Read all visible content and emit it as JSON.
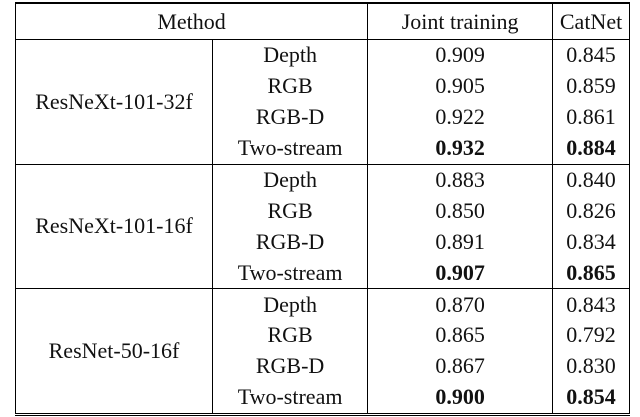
{
  "table": {
    "header": [
      "Method",
      "Joint training",
      "CatNet"
    ],
    "groups": [
      {
        "name": "ResNeXt-101-32f",
        "rows": [
          {
            "modality": "Depth",
            "joint": "0.909",
            "catnet": "0.845",
            "bold": false
          },
          {
            "modality": "RGB",
            "joint": "0.905",
            "catnet": "0.859",
            "bold": false
          },
          {
            "modality": "RGB-D",
            "joint": "0.922",
            "catnet": "0.861",
            "bold": false
          },
          {
            "modality": "Two-stream",
            "joint": "0.932",
            "catnet": "0.884",
            "bold": true
          }
        ]
      },
      {
        "name": "ResNeXt-101-16f",
        "rows": [
          {
            "modality": "Depth",
            "joint": "0.883",
            "catnet": "0.840",
            "bold": false
          },
          {
            "modality": "RGB",
            "joint": "0.850",
            "catnet": "0.826",
            "bold": false
          },
          {
            "modality": "RGB-D",
            "joint": "0.891",
            "catnet": "0.834",
            "bold": false
          },
          {
            "modality": "Two-stream",
            "joint": "0.907",
            "catnet": "0.865",
            "bold": true
          }
        ]
      },
      {
        "name": "ResNet-50-16f",
        "rows": [
          {
            "modality": "Depth",
            "joint": "0.870",
            "catnet": "0.843",
            "bold": false
          },
          {
            "modality": "RGB",
            "joint": "0.865",
            "catnet": "0.792",
            "bold": false
          },
          {
            "modality": "RGB-D",
            "joint": "0.867",
            "catnet": "0.830",
            "bold": false
          },
          {
            "modality": "Two-stream",
            "joint": "0.900",
            "catnet": "0.854",
            "bold": true
          }
        ]
      }
    ]
  }
}
